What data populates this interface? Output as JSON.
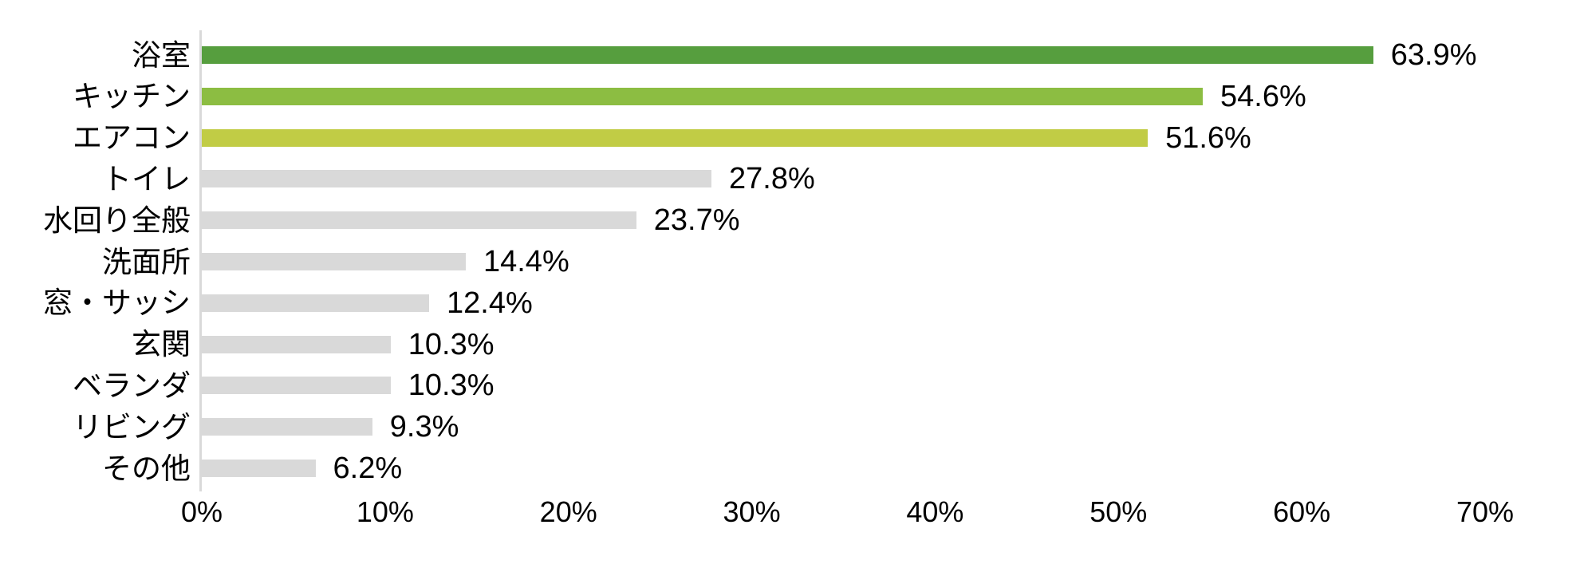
{
  "chart_data": {
    "type": "bar",
    "orientation": "horizontal",
    "title": "",
    "xlabel": "",
    "ylabel": "",
    "categories": [
      "浴室",
      "キッチン",
      "エアコン",
      "トイレ",
      "水回り全般",
      "洗面所",
      "窓・サッシ",
      "玄関",
      "ベランダ",
      "リビング",
      "その他"
    ],
    "values": [
      63.9,
      54.6,
      51.6,
      27.8,
      23.7,
      14.4,
      12.4,
      10.3,
      10.3,
      9.3,
      6.2
    ],
    "value_labels": [
      "63.9%",
      "54.6%",
      "51.6%",
      "27.8%",
      "23.7%",
      "14.4%",
      "12.4%",
      "10.3%",
      "10.3%",
      "9.3%",
      "6.2%"
    ],
    "bar_colors": [
      "#569e3e",
      "#8cbd42",
      "#c1cc45",
      "#d9d9d9",
      "#d9d9d9",
      "#d9d9d9",
      "#d9d9d9",
      "#d9d9d9",
      "#d9d9d9",
      "#d9d9d9",
      "#d9d9d9"
    ],
    "x_ticks": [
      "0%",
      "10%",
      "20%",
      "30%",
      "40%",
      "50%",
      "60%",
      "70%"
    ],
    "xlim": [
      0,
      70
    ],
    "grid": false,
    "legend": "none"
  },
  "colors": {
    "highlight_green_dark": "#569e3e",
    "highlight_green_mid": "#8cbd42",
    "highlight_green_light": "#c1cc45",
    "default_bar": "#d9d9d9",
    "axis_line": "#d9d9d9",
    "text": "#000000",
    "background": "#ffffff"
  }
}
